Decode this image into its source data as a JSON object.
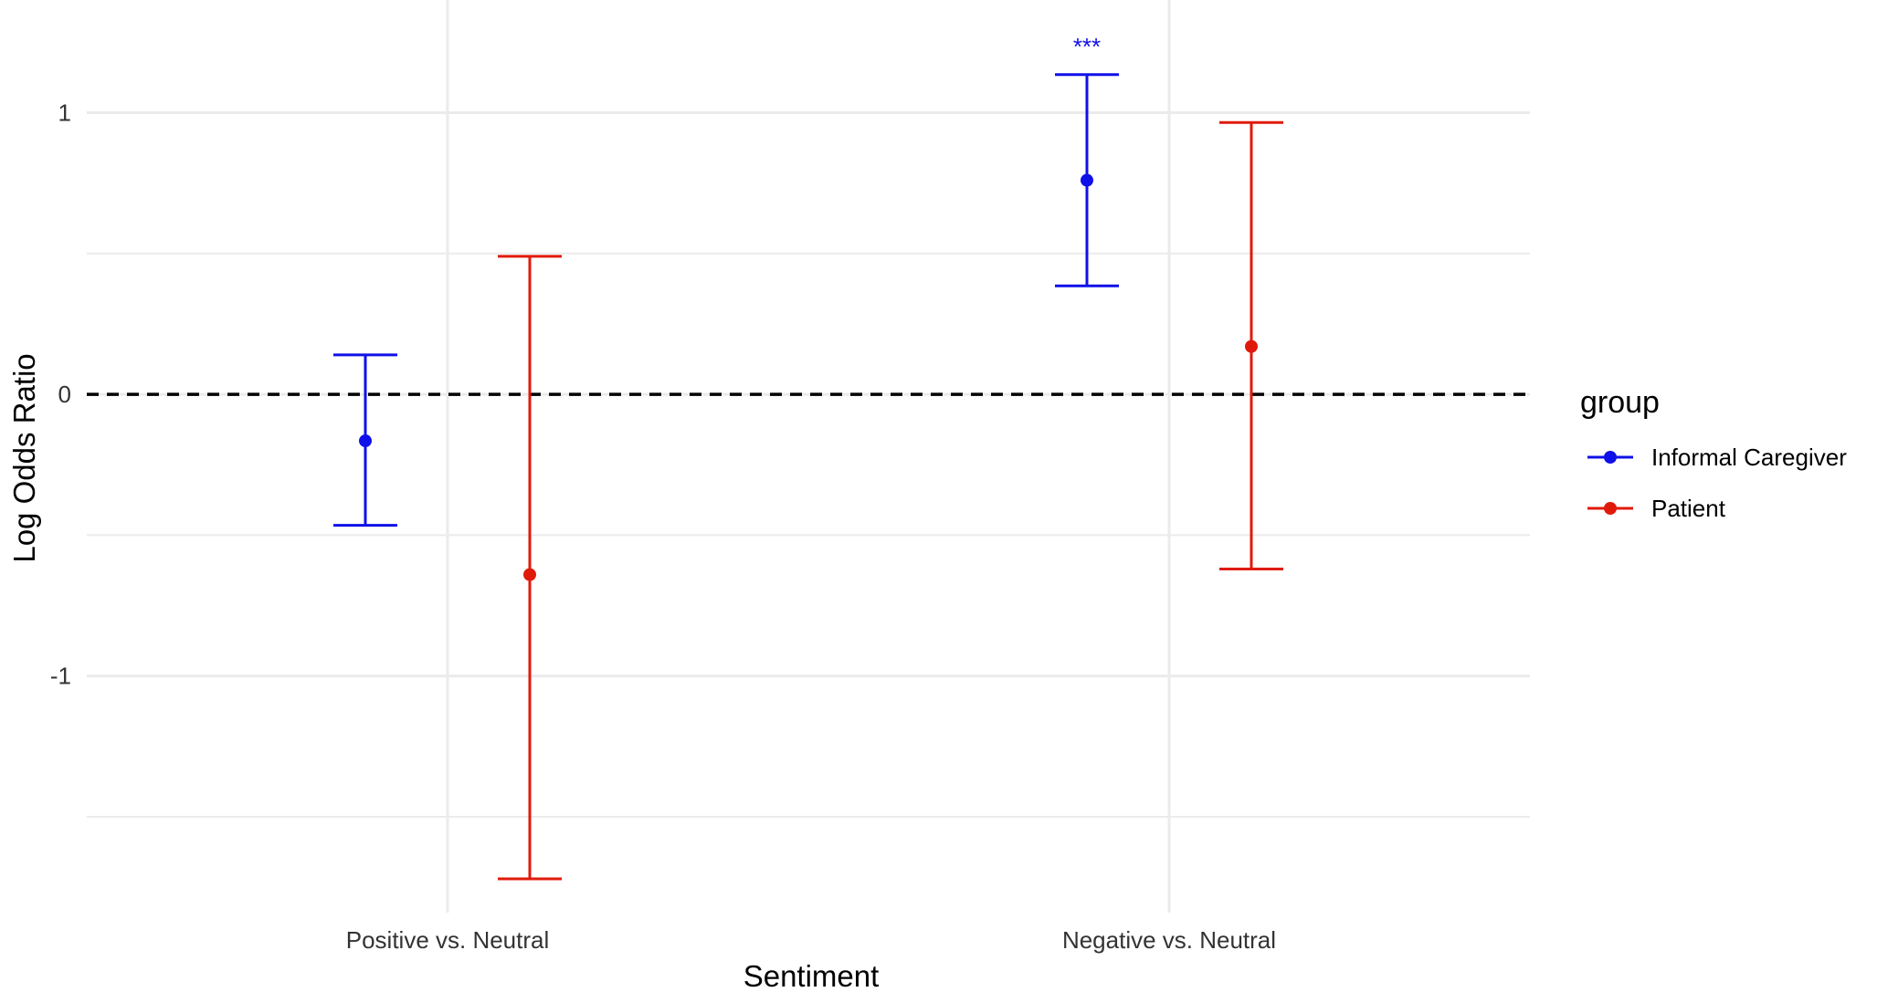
{
  "chart_data": {
    "type": "errorbar",
    "xlabel": "Sentiment",
    "ylabel": "Log Odds Ratio",
    "categories": [
      "Positive vs. Neutral",
      "Negative vs. Neutral"
    ],
    "ylim": [
      -1.84,
      1.4
    ],
    "yticks": [
      -1,
      0,
      1
    ],
    "ytick_labels": [
      "-1",
      "0",
      "1"
    ],
    "reference_line": {
      "y": 0,
      "style": "dashed",
      "color": "#000000"
    },
    "grid": true,
    "legend": {
      "title": "group",
      "placement": "right"
    },
    "series": [
      {
        "name": "Informal Caregiver",
        "color": "#1010e8",
        "points": [
          {
            "category": "Positive vs. Neutral",
            "estimate": -0.165,
            "lower": -0.465,
            "upper": 0.14,
            "annotation": ""
          },
          {
            "category": "Negative vs. Neutral",
            "estimate": 0.76,
            "lower": 0.385,
            "upper": 1.135,
            "annotation": "***"
          }
        ]
      },
      {
        "name": "Patient",
        "color": "#e01a0a",
        "points": [
          {
            "category": "Positive vs. Neutral",
            "estimate": -0.64,
            "lower": -1.72,
            "upper": 0.49,
            "annotation": ""
          },
          {
            "category": "Negative vs. Neutral",
            "estimate": 0.17,
            "lower": -0.62,
            "upper": 0.965,
            "annotation": ""
          }
        ]
      }
    ]
  }
}
